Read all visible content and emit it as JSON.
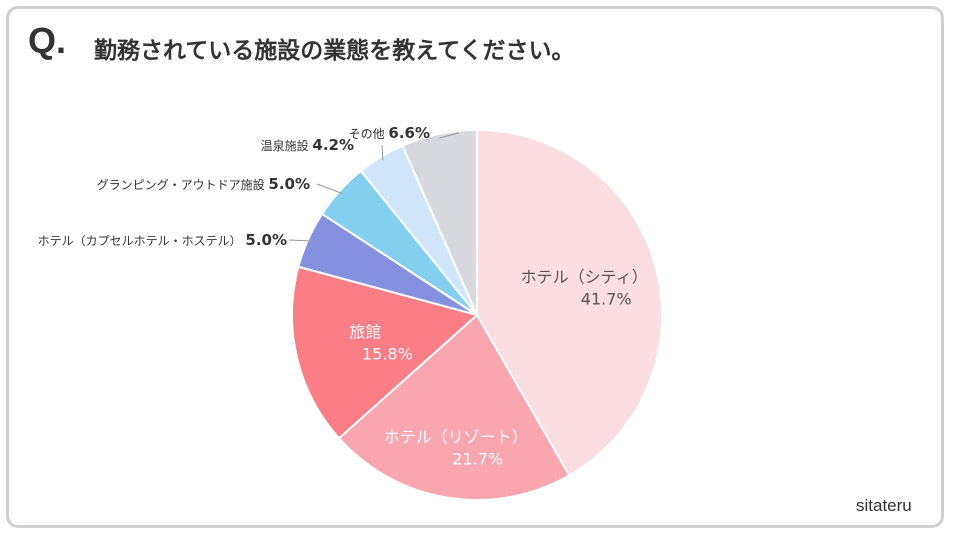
{
  "header": {
    "q_mark": "Q.",
    "question": "勤務されている施設の業態を教えてください。"
  },
  "logo": "sitateru",
  "chart_data": {
    "type": "pie",
    "start": "12 o'clock",
    "direction": "clockwise",
    "slices": [
      {
        "label": "ホテル（シティ）",
        "value": 41.7,
        "value_label": "41.7%",
        "color": "#fcdde1",
        "label_position": "inside"
      },
      {
        "label": "ホテル（リゾート）",
        "value": 21.7,
        "value_label": "21.7%",
        "color": "#f9a6ae",
        "label_position": "inside"
      },
      {
        "label": "旅館",
        "value": 15.8,
        "value_label": "15.8%",
        "color": "#fb7d86",
        "label_position": "inside"
      },
      {
        "label": "ホテル（カプセルホテル・ホステル）",
        "value": 5.0,
        "value_label": "5.0%",
        "color": "#8491de",
        "label_position": "outside"
      },
      {
        "label": "グランピング・アウトドア施設",
        "value": 5.0,
        "value_label": "5.0%",
        "color": "#84cff0",
        "label_position": "outside"
      },
      {
        "label": "温泉施設",
        "value": 4.2,
        "value_label": "4.2%",
        "color": "#cfe6fa",
        "label_position": "outside"
      },
      {
        "label": "その他",
        "value": 6.6,
        "value_label": "6.6%",
        "color": "#d8d9de",
        "label_position": "outside"
      }
    ]
  }
}
